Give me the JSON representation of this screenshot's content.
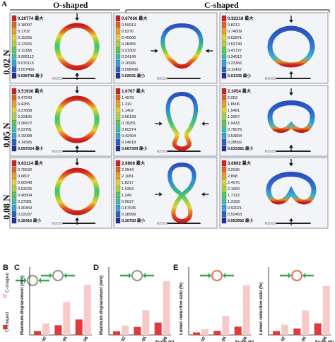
{
  "panel_labels": {
    "A": "A",
    "B": "B",
    "C": "C",
    "D": "D",
    "E": "E"
  },
  "headers": {
    "o_shaped": "O-shaped",
    "c_shaped": "C-shaped"
  },
  "rows": [
    {
      "force": "0.02 N"
    },
    {
      "force": "0.05 N"
    },
    {
      "force": "0.08 N"
    }
  ],
  "legend_suffix_max": "最大",
  "legend_suffix_min": "最小",
  "cells": [
    {
      "max": "0.20774",
      "values": [
        "0.18097",
        "0.1702",
        "0.15265",
        "0.13326",
        "0.11388",
        "0.095112",
        "0.076115",
        "0.057469",
        "0.038798"
      ],
      "shape": "ring"
    },
    {
      "max": "0.67066",
      "values": [
        "0.59913",
        "0.5276",
        "0.45606",
        "0.38455",
        "0.31302",
        "0.24149",
        "0.16996",
        "0.098438",
        "0.02691"
      ],
      "shape": "drop"
    },
    {
      "max": "0.92218",
      "values": [
        "0.8212",
        "0.74009",
        "0.63871",
        "0.53749",
        "0.41727",
        "0.34512",
        "0.23366",
        "0.11432",
        "0.01335"
      ],
      "shape": "cshape1"
    },
    {
      "max": "0.51936",
      "values": [
        "0.47243",
        "0.4255",
        "0.37858",
        "0.33165",
        "0.28472",
        "0.23781",
        "0.19088",
        "0.14395",
        "0.097024"
      ],
      "shape": "ring"
    },
    {
      "max": "1.6767",
      "values": [
        "1.4978",
        "1.319",
        "1.1402",
        "0.96128",
        "0.78251",
        "0.60374",
        "0.42494",
        "0.24618",
        "0.067309"
      ],
      "shape": "figure"
    },
    {
      "max": "2.3054",
      "values": [
        "2.053",
        "1.8006",
        "1.5481",
        "1.2957",
        "1.0433",
        "0.79075",
        "0.53834",
        "0.28592",
        "0.033381"
      ],
      "shape": "cshape2"
    },
    {
      "max": "0.83114",
      "values": [
        "0.75592",
        "0.6807",
        "0.60548",
        "0.53026",
        "0.45504",
        "0.37981",
        "0.30459",
        "0.22937",
        "0.15415"
      ],
      "shape": "ring"
    },
    {
      "max": "2.6808",
      "values": [
        "2.3944",
        "2.1081",
        "1.8217",
        "1.5354",
        "1.249",
        "0.9627",
        "0.67635",
        "0.38999",
        "0.10783"
      ],
      "shape": "twist"
    },
    {
      "max": "3.6892",
      "values": [
        "3.2936",
        "2.898",
        "2.4975",
        "2.1069",
        "1.7113",
        "1.3158",
        "0.92021",
        "0.52463",
        "0.053992"
      ],
      "shape": "cshape3"
    }
  ],
  "legend_colors": [
    "#d42020",
    "#e8621c",
    "#f2a21e",
    "#e7d52c",
    "#a9d63b",
    "#5cc95a",
    "#36c4a4",
    "#2fa6d8",
    "#2a62c8",
    "#1e2f9e"
  ],
  "bar_charts": [
    {
      "id": "B",
      "legend": {
        "c": "C-shaped",
        "o": "O-shaped"
      },
      "ylabel": "",
      "xlabel": "",
      "categories": [],
      "c_values": [],
      "o_values": [],
      "ylim": [
        0,
        3
      ]
    },
    {
      "id": "C",
      "legend": {
        "c": "",
        "o": ""
      },
      "ylabel": "Maximum displacement (mm)",
      "xlabel": "",
      "categories": [
        "0.02",
        "0.05",
        "0.08"
      ],
      "c_values": [
        0.6,
        1.7,
        2.6
      ],
      "o_values": [
        0.2,
        0.5,
        0.8
      ],
      "ylim": [
        0,
        3
      ]
    },
    {
      "id": "D",
      "legend": {
        "c": "",
        "o": ""
      },
      "ylabel": "Maximum displacement (mm)",
      "xlabel": "Force (N)",
      "categories": [
        "0.02",
        "0.05",
        "0.08"
      ],
      "c_values": [
        0.65,
        1.7,
        3.7
      ],
      "o_values": [
        0.25,
        0.55,
        0.85
      ],
      "ylim": [
        0,
        4
      ]
    },
    {
      "id": "E",
      "legend": {
        "c": "",
        "o": ""
      },
      "ylabel": "Lumen reduction ratio (%)",
      "xlabel": "Force (N)",
      "categories": [
        "0.02",
        "0.05",
        "0.08"
      ],
      "c_values": [
        7,
        23,
        60
      ],
      "o_values": [
        3,
        5,
        10
      ],
      "ylim": [
        0,
        70
      ]
    },
    {
      "id": "F",
      "legend": {
        "c": "",
        "o": ""
      },
      "ylabel": "Lumen reduction ratio (%)",
      "xlabel": "Force (N)",
      "categories": [
        "0.02",
        "0.05",
        "0.08"
      ],
      "c_values": [
        8,
        19,
        38
      ],
      "o_values": [
        3,
        5,
        9
      ],
      "ylim": [
        0,
        45
      ]
    }
  ]
}
